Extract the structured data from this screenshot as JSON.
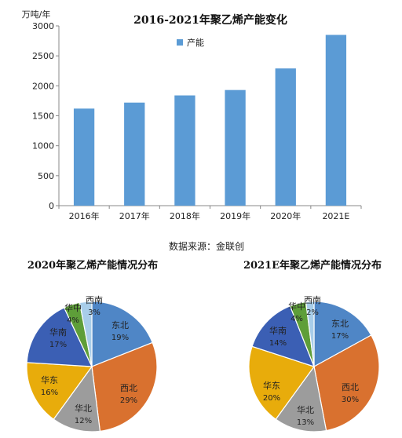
{
  "source_note": "数据来源：金联创",
  "colors": {
    "bar": "#5b9bd5",
    "东北": "#4f86c6",
    "西北": "#d9712f",
    "华北": "#9c9c9c",
    "华东": "#e8ac0b",
    "华南": "#3b5fb4",
    "华中": "#5e9e39",
    "西南": "#a8cde9"
  },
  "chart_data": [
    {
      "type": "bar",
      "title": "2016-2021年聚乙烯产能变化",
      "ylabel": "万吨/年",
      "xlabel": "",
      "categories": [
        "2016年",
        "2017年",
        "2018年",
        "2019年",
        "2020年",
        "2021E"
      ],
      "series": [
        {
          "name": "产能",
          "values": [
            1620,
            1720,
            1840,
            1930,
            2290,
            2850
          ]
        }
      ],
      "ylim": [
        0,
        3000
      ],
      "yticks": [
        0,
        500,
        1000,
        1500,
        2000,
        2500,
        3000
      ],
      "grid": false,
      "legend": "top-center"
    },
    {
      "type": "pie",
      "title": "2020年聚乙烯产能情况分布",
      "labels": [
        "东北",
        "西北",
        "华北",
        "华东",
        "华南",
        "华中",
        "西南"
      ],
      "values": [
        19,
        29,
        12,
        16,
        17,
        4,
        3
      ],
      "value_labels": [
        "19%",
        "29%",
        "12%",
        "16%",
        "17%",
        "4%",
        "3%"
      ]
    },
    {
      "type": "pie",
      "title": "2021E年聚乙烯产能情况分布",
      "labels": [
        "东北",
        "西北",
        "华北",
        "华东",
        "华南",
        "华中",
        "西南"
      ],
      "values": [
        17,
        30,
        13,
        20,
        14,
        4,
        2
      ],
      "value_labels": [
        "17%",
        "30%",
        "13%",
        "20%",
        "14%",
        "4%",
        "2%"
      ]
    }
  ]
}
